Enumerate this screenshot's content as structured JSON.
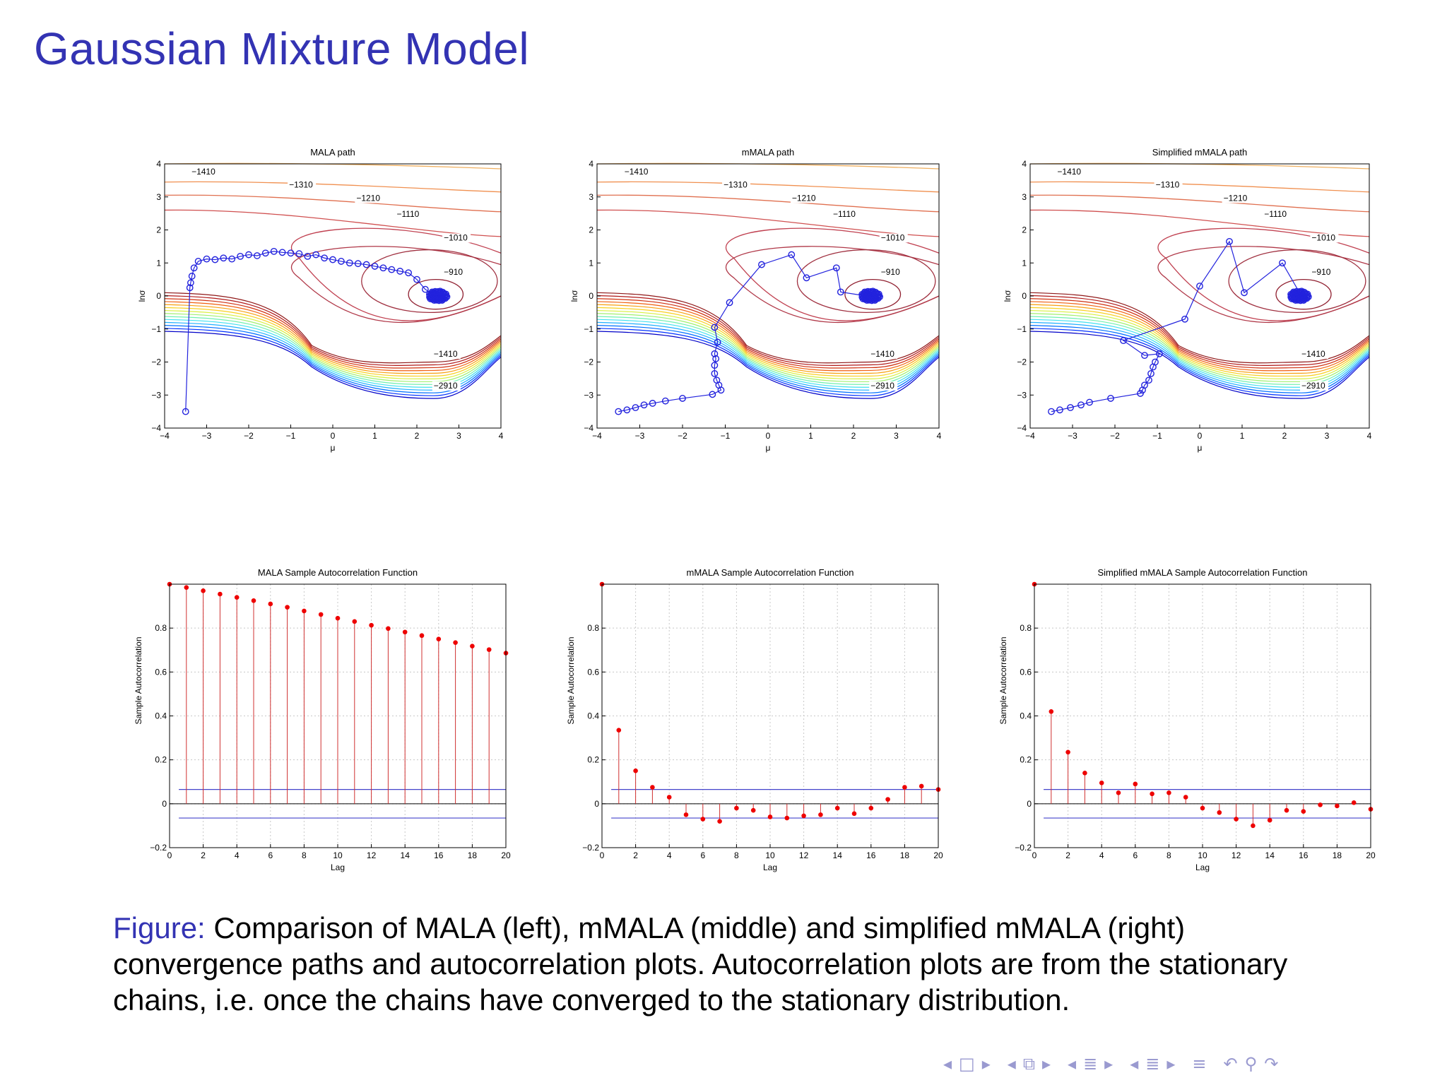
{
  "slide": {
    "title": "Gaussian Mixture Model",
    "caption_label": "Figure:",
    "caption_text": "Comparison of MALA (left), mMALA (middle) and simplified mMALA (right) convergence paths and autocorrelation plots. Autocorrelation plots are from the stationary chains, i.e. once the chains have converged to the stationary distribution."
  },
  "navigation": {
    "icons": [
      "nav-left-arrow-icon",
      "nav-frame-icon",
      "nav-right-arrow-icon",
      "nav-left-arrow-icon",
      "nav-subsection-icon",
      "nav-right-arrow-icon",
      "nav-left-arrow-icon",
      "nav-section-icon",
      "nav-right-arrow-icon",
      "nav-left-arrow-icon",
      "nav-menu-icon",
      "nav-right-arrow-icon",
      "nav-toc-icon",
      "nav-back-icon",
      "nav-search-icon",
      "nav-forward-icon"
    ],
    "glyphs": [
      "◂",
      "□",
      "▸",
      "◂",
      "⧉",
      "▸",
      "◂",
      "≣",
      "▸",
      "◂",
      "≣",
      "▸",
      "≡",
      "↶",
      "⚲",
      "↷"
    ],
    "color": "#9a9ad0"
  },
  "colors": {
    "title": "#3333b3",
    "path": "#2222dd",
    "acf_stem": "#d03030",
    "acf_marker": "#ee0000",
    "confidence_band": "#4444cc"
  },
  "chart_data": [
    {
      "type": "contour-path",
      "title": "MALA path",
      "xlabel": "μ",
      "ylabel": "lnσ",
      "xlim": [
        -4,
        4
      ],
      "ylim": [
        -4,
        4
      ],
      "xticks": [
        -4,
        -3,
        -2,
        -1,
        0,
        1,
        2,
        3,
        4
      ],
      "yticks": [
        -4,
        -3,
        -2,
        -1,
        0,
        1,
        2,
        3,
        4
      ],
      "contour_labels": [
        "−1410",
        "−1310",
        "−1210",
        "−1110",
        "−1010",
        "−910",
        "−1410",
        "−2910"
      ],
      "path": {
        "x": [
          -3.5,
          -3.4,
          -3.38,
          -3.35,
          -3.3,
          -3.2,
          -3.0,
          -2.8,
          -2.6,
          -2.4,
          -2.2,
          -2.0,
          -1.8,
          -1.6,
          -1.4,
          -1.2,
          -1.0,
          -0.8,
          -0.6,
          -0.4,
          -0.2,
          0.0,
          0.2,
          0.4,
          0.6,
          0.8,
          1.0,
          1.2,
          1.4,
          1.6,
          1.8,
          2.0,
          2.2,
          2.4,
          2.5
        ],
        "y": [
          -3.5,
          0.25,
          0.4,
          0.6,
          0.85,
          1.05,
          1.12,
          1.1,
          1.15,
          1.12,
          1.2,
          1.25,
          1.22,
          1.3,
          1.35,
          1.32,
          1.3,
          1.28,
          1.2,
          1.25,
          1.15,
          1.1,
          1.05,
          1.0,
          0.98,
          0.95,
          0.9,
          0.85,
          0.8,
          0.75,
          0.7,
          0.5,
          0.2,
          0.05,
          0.0
        ]
      },
      "cluster": {
        "x": 2.5,
        "y": 0.0
      }
    },
    {
      "type": "contour-path",
      "title": "mMALA path",
      "xlabel": "μ",
      "ylabel": "lnσ",
      "xlim": [
        -4,
        4
      ],
      "ylim": [
        -4,
        4
      ],
      "xticks": [
        -4,
        -3,
        -2,
        -1,
        0,
        1,
        2,
        3,
        4
      ],
      "yticks": [
        -4,
        -3,
        -2,
        -1,
        0,
        1,
        2,
        3,
        4
      ],
      "contour_labels": [
        "−1410",
        "−1310",
        "−1210",
        "−1110",
        "−1010",
        "−910",
        "−1410",
        "−2910"
      ],
      "path": {
        "x": [
          -3.5,
          -3.3,
          -3.1,
          -2.9,
          -2.7,
          -2.4,
          -2.0,
          -1.3,
          -1.1,
          -1.15,
          -1.2,
          -1.25,
          -1.25,
          -1.22,
          -1.25,
          -1.18,
          -1.25,
          -0.9,
          -0.15,
          0.55,
          0.9,
          1.6,
          1.7,
          2.3
        ],
        "y": [
          -3.5,
          -3.45,
          -3.38,
          -3.3,
          -3.25,
          -3.18,
          -3.1,
          -2.98,
          -2.85,
          -2.7,
          -2.55,
          -2.35,
          -2.1,
          -1.9,
          -1.75,
          -1.4,
          -0.95,
          -0.2,
          0.95,
          1.25,
          0.55,
          0.85,
          0.12,
          0.0
        ]
      },
      "cluster": {
        "x": 2.4,
        "y": 0.0
      }
    },
    {
      "type": "contour-path",
      "title": "Simplified mMALA path",
      "xlabel": "μ",
      "ylabel": "lnσ",
      "xlim": [
        -4,
        4
      ],
      "ylim": [
        -4,
        4
      ],
      "xticks": [
        -4,
        -3,
        -2,
        -1,
        0,
        1,
        2,
        3,
        4
      ],
      "yticks": [
        -4,
        -3,
        -2,
        -1,
        0,
        1,
        2,
        3,
        4
      ],
      "contour_labels": [
        "−1410",
        "−1310",
        "−1210",
        "−1110",
        "−1010",
        "−910",
        "−1410",
        "−2910"
      ],
      "path": {
        "x": [
          -3.5,
          -3.3,
          -3.05,
          -2.8,
          -2.6,
          -2.1,
          -1.4,
          -1.35,
          -1.3,
          -1.2,
          -1.15,
          -1.1,
          -1.05,
          -0.95,
          -1.3,
          -1.8,
          -0.35,
          0.0,
          0.7,
          1.05,
          1.95,
          2.4
        ],
        "y": [
          -3.5,
          -3.45,
          -3.38,
          -3.3,
          -3.22,
          -3.1,
          -2.95,
          -2.85,
          -2.7,
          -2.55,
          -2.35,
          -2.15,
          -2.0,
          -1.75,
          -1.8,
          -1.35,
          -0.7,
          0.3,
          1.65,
          0.1,
          1.0,
          0.0
        ]
      },
      "cluster": {
        "x": 2.35,
        "y": 0.0
      }
    },
    {
      "type": "stem",
      "title": "MALA Sample Autocorrelation Function",
      "xlabel": "Lag",
      "ylabel": "Sample Autocorrelation",
      "xlim": [
        0,
        20
      ],
      "ylim": [
        -0.2,
        1.0
      ],
      "xticks": [
        0,
        2,
        4,
        6,
        8,
        10,
        12,
        14,
        16,
        18,
        20
      ],
      "yticks": [
        -0.2,
        0,
        0.2,
        0.4,
        0.6,
        0.8
      ],
      "lags": [
        0,
        1,
        2,
        3,
        4,
        5,
        6,
        7,
        8,
        9,
        10,
        11,
        12,
        13,
        14,
        15,
        16,
        17,
        18,
        19,
        20
      ],
      "values": [
        1.0,
        0.985,
        0.97,
        0.955,
        0.94,
        0.925,
        0.91,
        0.895,
        0.878,
        0.862,
        0.845,
        0.83,
        0.813,
        0.798,
        0.782,
        0.766,
        0.75,
        0.734,
        0.718,
        0.702,
        0.686
      ],
      "confidence_bounds": [
        0.065,
        -0.065
      ]
    },
    {
      "type": "stem",
      "title": "mMALA Sample Autocorrelation Function",
      "xlabel": "Lag",
      "ylabel": "Sample Autocorrelation",
      "xlim": [
        0,
        20
      ],
      "ylim": [
        -0.2,
        1.0
      ],
      "xticks": [
        0,
        2,
        4,
        6,
        8,
        10,
        12,
        14,
        16,
        18,
        20
      ],
      "yticks": [
        -0.2,
        0,
        0.2,
        0.4,
        0.6,
        0.8
      ],
      "lags": [
        0,
        1,
        2,
        3,
        4,
        5,
        6,
        7,
        8,
        9,
        10,
        11,
        12,
        13,
        14,
        15,
        16,
        17,
        18,
        19,
        20
      ],
      "values": [
        1.0,
        0.335,
        0.15,
        0.075,
        0.03,
        -0.05,
        -0.07,
        -0.08,
        -0.02,
        -0.03,
        -0.06,
        -0.065,
        -0.055,
        -0.05,
        -0.02,
        -0.045,
        -0.02,
        0.02,
        0.075,
        0.08,
        0.065
      ],
      "confidence_bounds": [
        0.065,
        -0.065
      ]
    },
    {
      "type": "stem",
      "title": "Simplified mMALA Sample Autocorrelation Function",
      "xlabel": "Lag",
      "ylabel": "Sample Autocorrelation",
      "xlim": [
        0,
        20
      ],
      "ylim": [
        -0.2,
        1.0
      ],
      "xticks": [
        0,
        2,
        4,
        6,
        8,
        10,
        12,
        14,
        16,
        18,
        20
      ],
      "yticks": [
        -0.2,
        0,
        0.2,
        0.4,
        0.6,
        0.8
      ],
      "lags": [
        0,
        1,
        2,
        3,
        4,
        5,
        6,
        7,
        8,
        9,
        10,
        11,
        12,
        13,
        14,
        15,
        16,
        17,
        18,
        19,
        20
      ],
      "values": [
        1.0,
        0.42,
        0.235,
        0.14,
        0.095,
        0.05,
        0.09,
        0.045,
        0.05,
        0.03,
        -0.02,
        -0.04,
        -0.07,
        -0.1,
        -0.075,
        -0.03,
        -0.035,
        -0.005,
        -0.01,
        0.005,
        -0.025
      ],
      "confidence_bounds": [
        0.065,
        -0.065
      ]
    }
  ]
}
